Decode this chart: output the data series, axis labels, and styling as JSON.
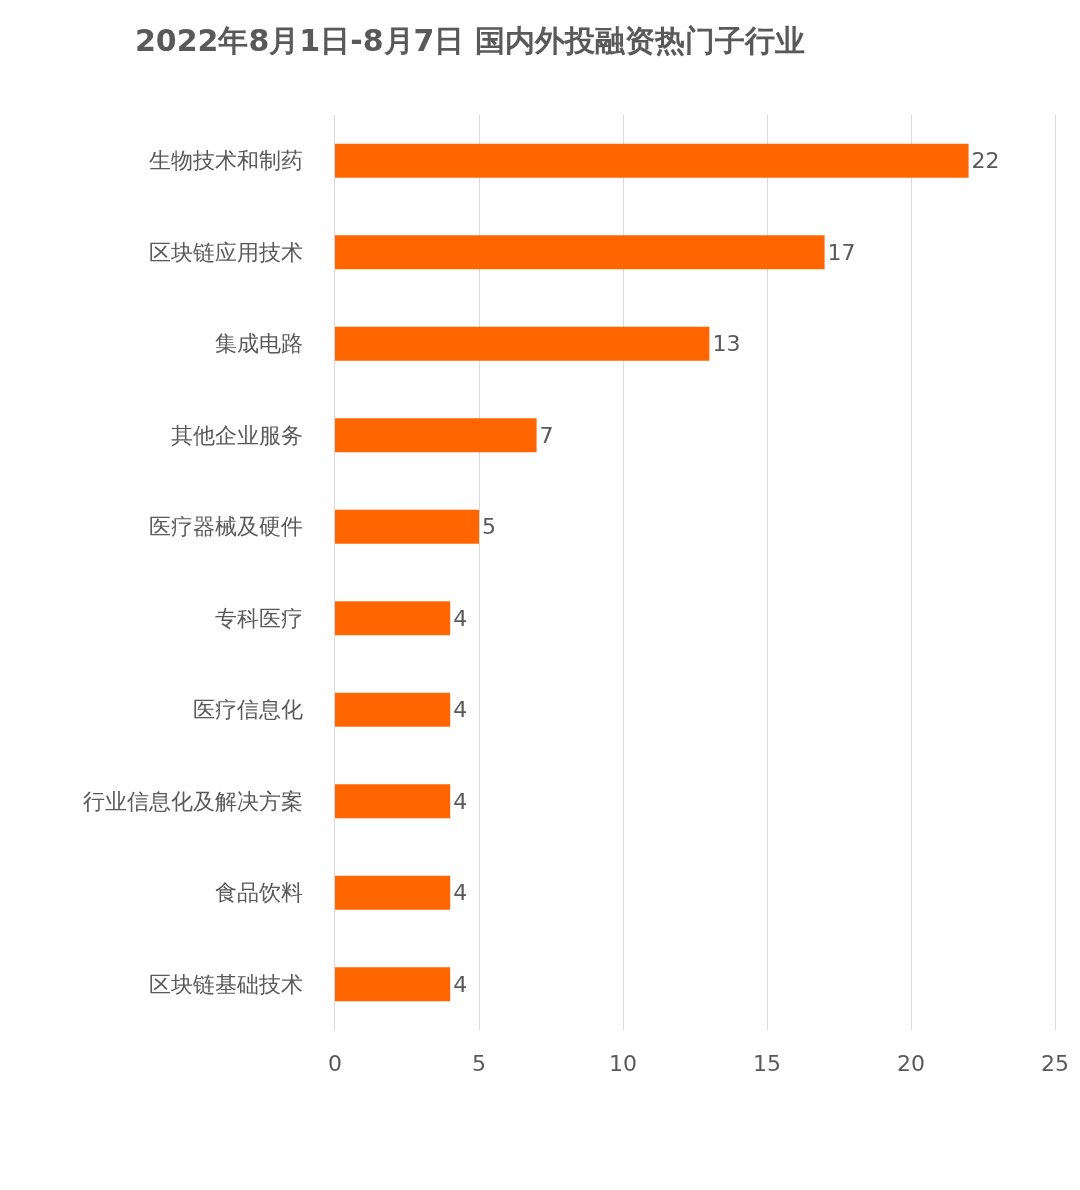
{
  "chart_data": {
    "type": "bar",
    "orientation": "horizontal",
    "title": "2022年8月1日-8月7日 国内外投融资热门子行业",
    "categories": [
      "生物技术和制药",
      "区块链应用技术",
      "集成电路",
      "其他企业服务",
      "医疗器械及硬件",
      "专科医疗",
      "医疗信息化",
      "行业信息化及解决方案",
      "食品饮料",
      "区块链基础技术"
    ],
    "values": [
      22,
      17,
      13,
      7,
      5,
      4,
      4,
      4,
      4,
      4
    ],
    "color": "#ff6600",
    "xlim": [
      0,
      25
    ],
    "xticks": [
      0,
      5,
      10,
      15,
      20,
      25
    ],
    "grid": "x",
    "data_labels": true
  }
}
